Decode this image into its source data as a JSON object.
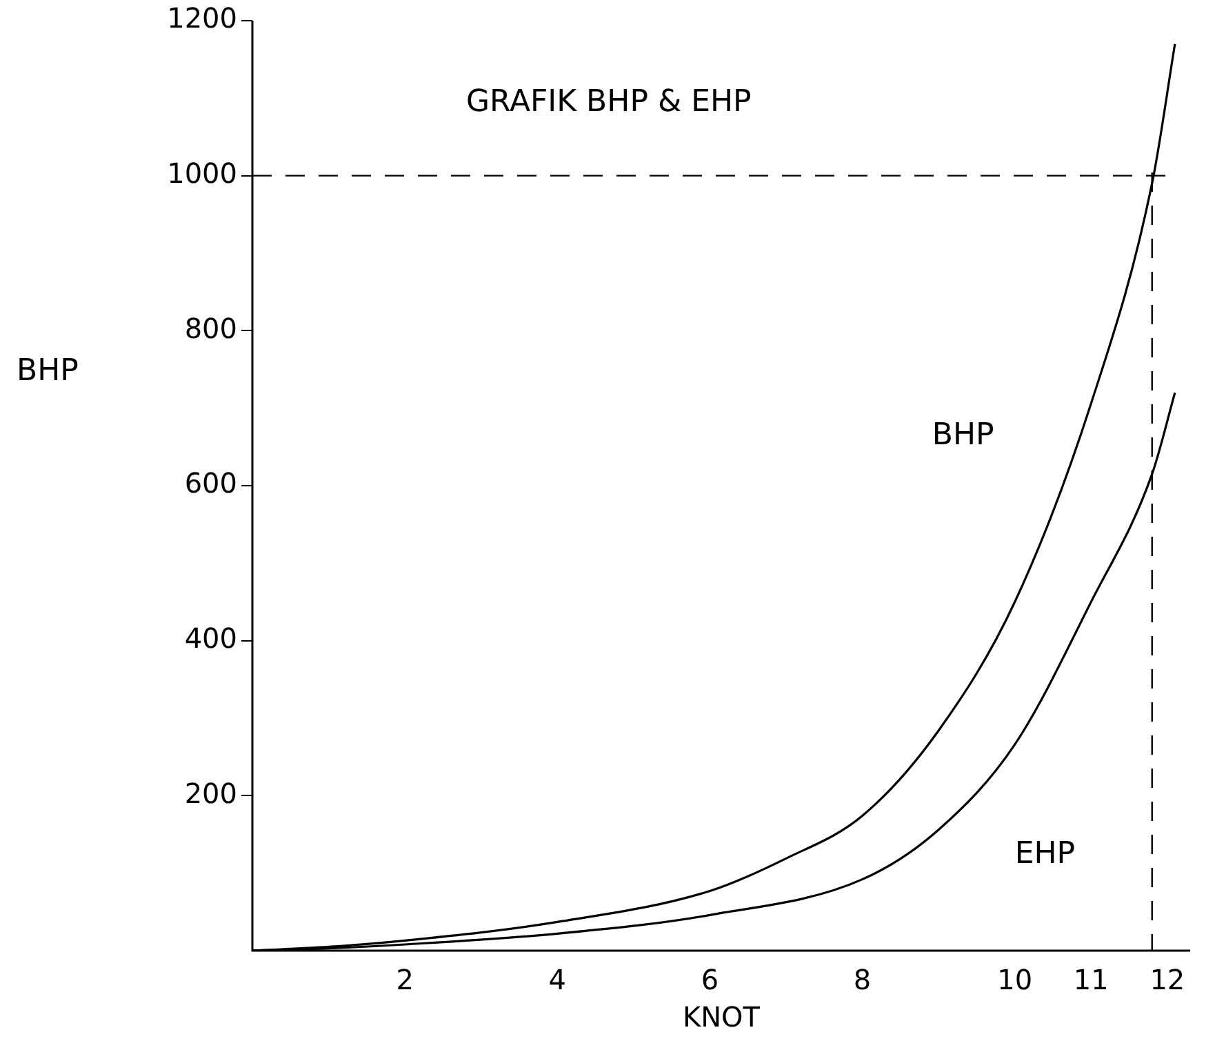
{
  "chart_data": {
    "type": "line",
    "title": "GRAFIK BHP & EHP",
    "xlabel": "KNOT",
    "ylabel": "BHP",
    "series": [
      {
        "name": "BHP",
        "color": "#000000",
        "x": [
          0,
          1,
          2,
          4,
          6,
          7,
          8,
          9,
          10,
          11,
          11.8,
          12.1
        ],
        "values": [
          0,
          5,
          13,
          37,
          77,
          119,
          174,
          284,
          450,
          706,
          990,
          1170
        ]
      },
      {
        "name": "EHP",
        "color": "#000000",
        "x": [
          0,
          1,
          2,
          4,
          6,
          8,
          9,
          10,
          11,
          11.8,
          12.1
        ],
        "values": [
          0,
          3,
          8,
          22,
          46,
          92,
          156,
          266,
          450,
          615,
          720
        ]
      }
    ],
    "xlim": [
      0,
      12.3
    ],
    "xticks": [
      2,
      4,
      6,
      8,
      10,
      11,
      12
    ],
    "ylim": [
      0,
      1200
    ],
    "yticks": [
      200,
      400,
      600,
      800,
      1000,
      1200
    ],
    "ref_lines": [
      {
        "axis": "y",
        "value": 1000,
        "line_style": "dashed"
      },
      {
        "axis": "x",
        "value": 11.8,
        "line_style": "dashed"
      }
    ],
    "grid": false,
    "legend": false,
    "marker": "none",
    "line_style": "solid"
  }
}
